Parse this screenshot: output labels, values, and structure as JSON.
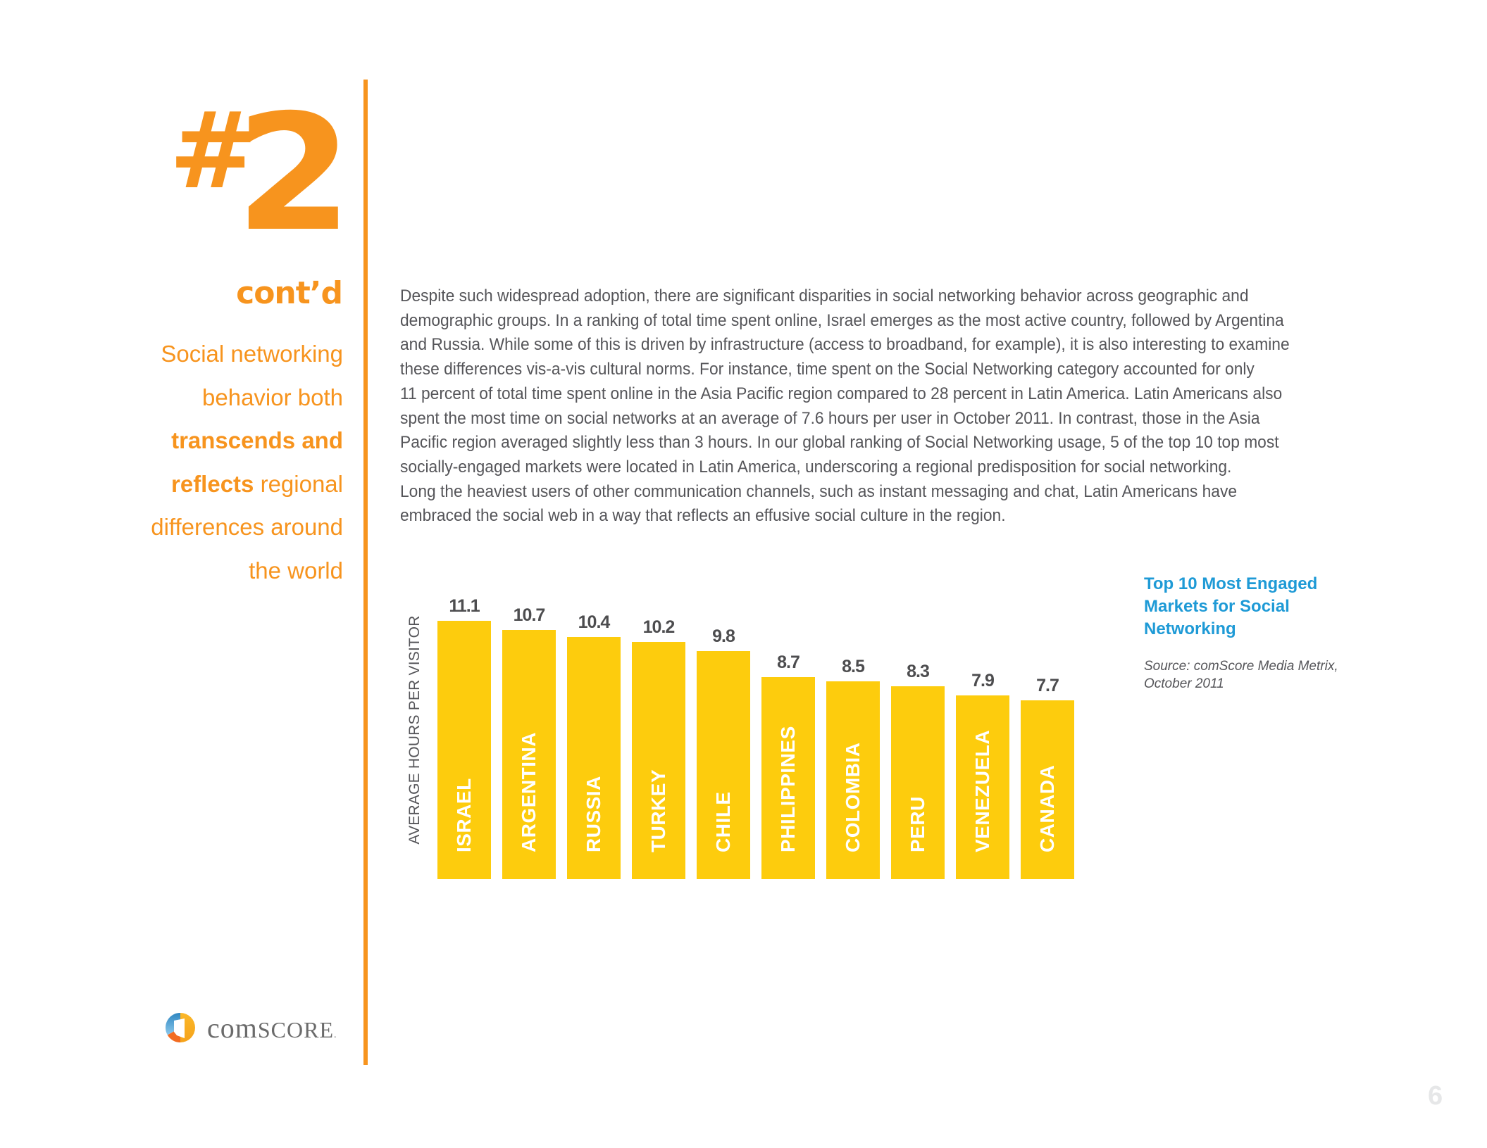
{
  "section": {
    "hash": "#",
    "number": "2",
    "contd": "cont’d",
    "tagline": [
      {
        "normal": "Social networking",
        "bold": ""
      },
      {
        "normal": "behavior both",
        "bold": ""
      },
      {
        "normal": "",
        "bold": "transcends and"
      },
      {
        "bold": "reflects",
        "normal": " regional"
      },
      {
        "normal": "differences around",
        "bold": ""
      },
      {
        "normal": "the world",
        "bold": ""
      }
    ]
  },
  "body": {
    "lines": [
      "Despite such widespread adoption, there are significant disparities in social networking behavior across geographic and",
      "demographic groups. In a ranking of total time spent online, Israel emerges as the most active country, followed by Argentina",
      "and Russia. While some of this is driven by infrastructure (access to broadband, for example), it is also interesting to examine",
      "these differences vis-a-vis cultural norms. For instance, time spent on the Social Networking category accounted for only",
      "11 percent of total time spent online in the Asia Pacific region compared to 28 percent in Latin America. Latin Americans also",
      "spent the most time on social networks at an average of 7.6 hours per user in October 2011. In contrast, those in the Asia",
      "Pacific region averaged slightly less than 3 hours. In our global ranking of Social Networking usage, 5 of the top 10 top most",
      "socially-engaged markets were located in Latin America, underscoring a regional predisposition for social networking.",
      "Long the heaviest users of other communication channels, such as instant messaging and chat, Latin Americans have",
      "embraced the social web in a way that reflects an effusive social culture in the region."
    ]
  },
  "chart_data": {
    "type": "bar",
    "title": "Top 10 Most Engaged Markets for Social Networking",
    "source": "Source: comScore Media Metrix, October 2011",
    "xlabel": "",
    "ylabel": "AVERAGE HOURS PER VISITOR",
    "categories": [
      "ISRAEL",
      "ARGENTINA",
      "RUSSIA",
      "TURKEY",
      "CHILE",
      "PHILIPPINES",
      "COLOMBIA",
      "PERU",
      "VENEZUELA",
      "CANADA"
    ],
    "values": [
      11.1,
      10.7,
      10.4,
      10.2,
      9.8,
      8.7,
      8.5,
      8.3,
      7.9,
      7.7
    ],
    "value_labels": [
      "11.1",
      "10.7",
      "10.4",
      "10.2",
      "9.8",
      "8.7",
      "8.5",
      "8.3",
      "7.9",
      "7.7"
    ],
    "grid": false,
    "axis_ticks": false,
    "data_labels": true,
    "colors": {
      "bar": "#FDCC0D",
      "bar_label": "#FFFFFF",
      "value_label": "#4D4D4F"
    }
  },
  "legend": {
    "title_lines": [
      "Top 10 Most Engaged",
      "Markets for Social",
      "Networking"
    ],
    "source_lines": [
      "Source: comScore Media Metrix,",
      "October 2011"
    ]
  },
  "logo": {
    "text_main": "com",
    "text_caps": "SCORE",
    "trademark": "."
  },
  "page_number": "6",
  "colors": {
    "accent_orange": "#F7941E",
    "legend_blue": "#1E9AD6",
    "body_text": "#555559",
    "page_number": "#E6E7E8"
  }
}
